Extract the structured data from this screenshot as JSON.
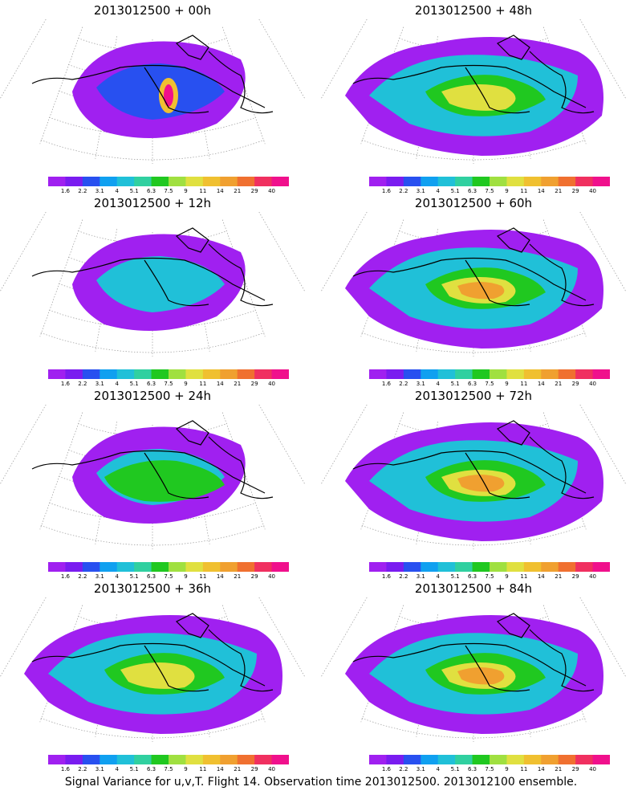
{
  "caption": "Signal Variance for u,v,T. Flight 14. Observation time 2013012500. 2013012100 ensemble.",
  "colorbar": {
    "colors": [
      "#a020f0",
      "#7a1cf0",
      "#2850f0",
      "#10a0f0",
      "#20c0d8",
      "#30d0a0",
      "#20c820",
      "#a0e040",
      "#e0e040",
      "#f0c030",
      "#f0a030",
      "#f07030",
      "#f03060",
      "#f0108c"
    ],
    "labels": [
      "1.6",
      "2.2",
      "3.1",
      "4",
      "5.1",
      "6.3",
      "7.5",
      "9",
      "11",
      "14",
      "21",
      "29",
      "40"
    ]
  },
  "panels": [
    {
      "title": "2013012500 + 00h",
      "intensity": 0
    },
    {
      "title": "2013012500 + 12h",
      "intensity": 1
    },
    {
      "title": "2013012500 + 24h",
      "intensity": 2
    },
    {
      "title": "2013012500 + 36h",
      "intensity": 3
    },
    {
      "title": "2013012500 + 48h",
      "intensity": 3
    },
    {
      "title": "2013012500 + 60h",
      "intensity": 4
    },
    {
      "title": "2013012500 + 72h",
      "intensity": 5
    },
    {
      "title": "2013012500 + 84h",
      "intensity": 5
    }
  ]
}
